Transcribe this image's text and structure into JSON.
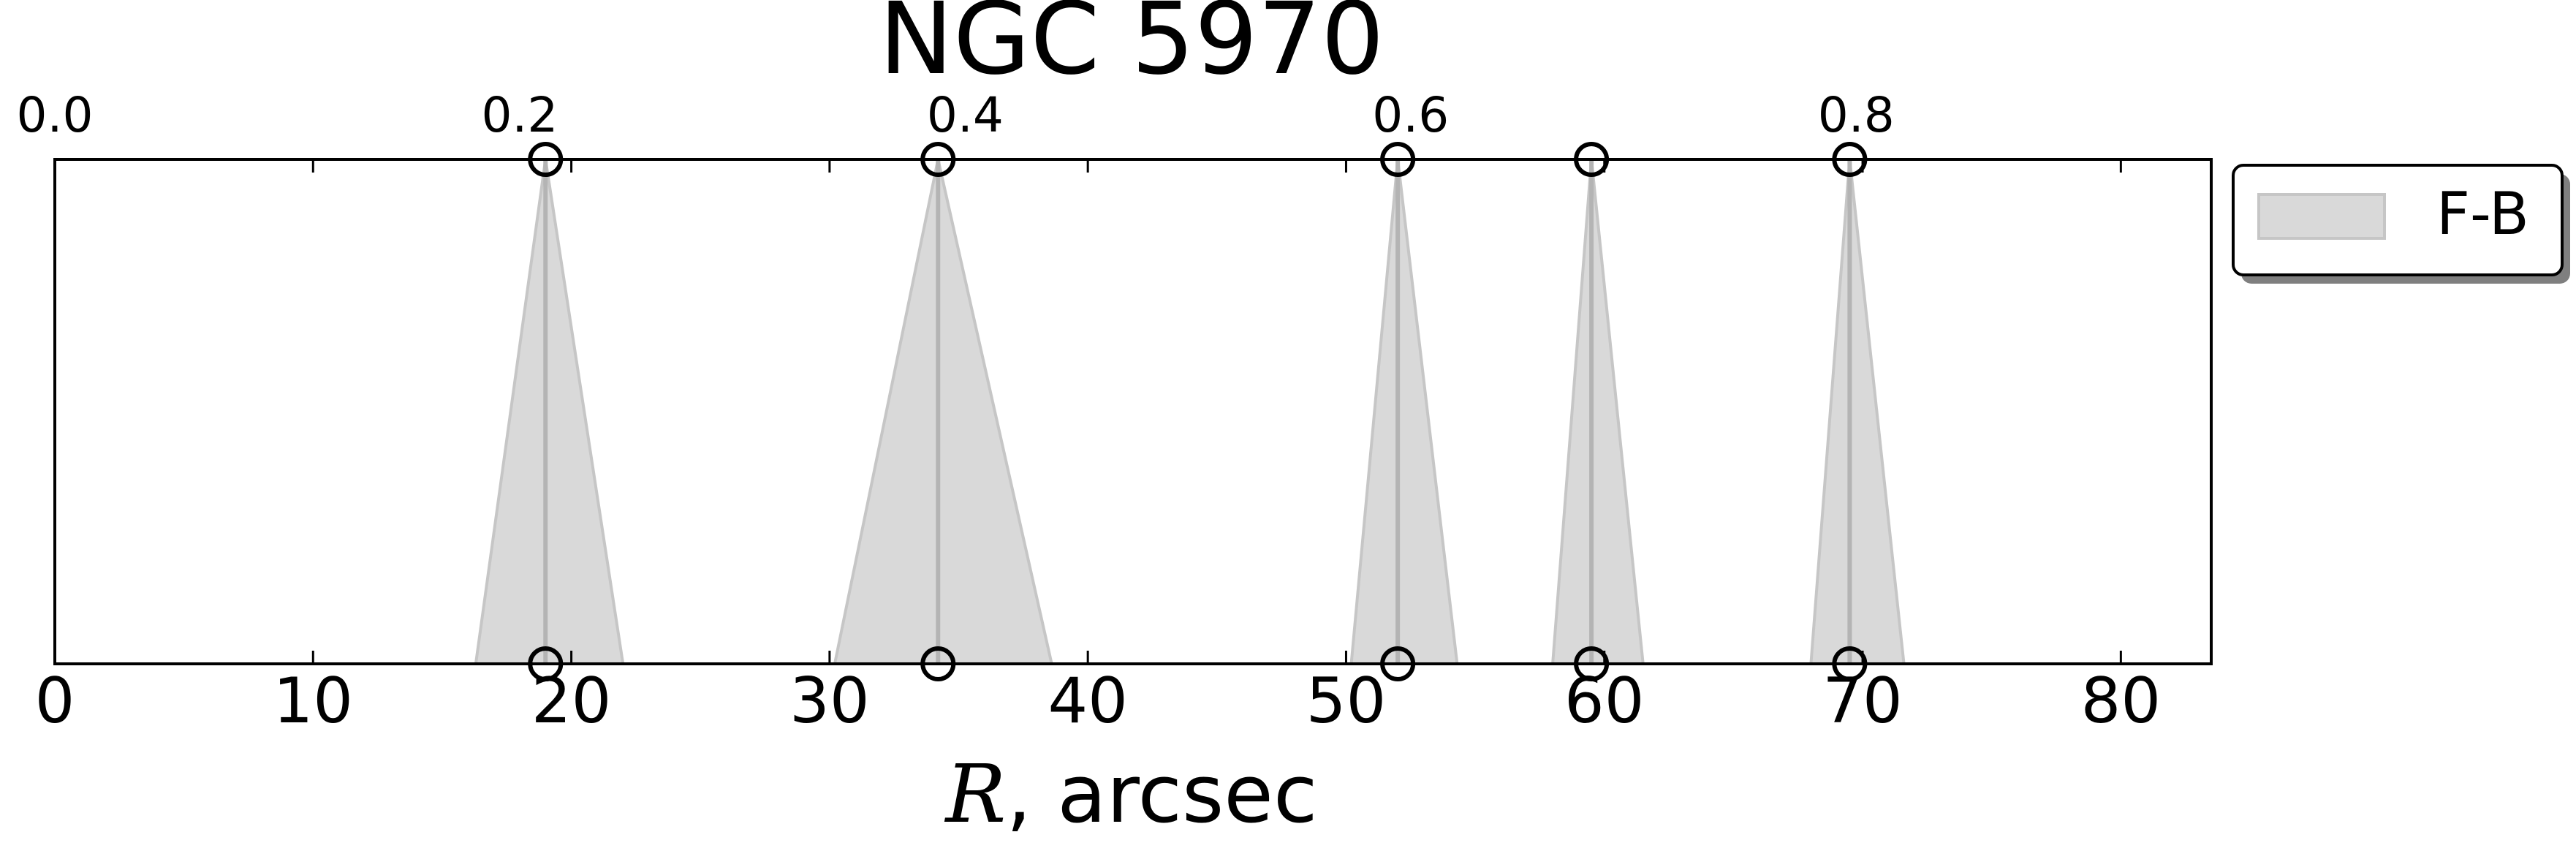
{
  "chart_data": {
    "type": "area",
    "title": "NGC 5970",
    "xlabel_var": "R",
    "xlabel_rest": ", arcsec",
    "xlim": [
      0,
      83.5
    ],
    "xticks": [
      0,
      10,
      20,
      30,
      40,
      50,
      60,
      70,
      80
    ],
    "top_axis_ticks": [
      {
        "label": "0.0",
        "x": 0
      },
      {
        "label": "0.2",
        "x": 18
      },
      {
        "label": "0.4",
        "x": 35.25
      },
      {
        "label": "0.6",
        "x": 52.5
      },
      {
        "label": "0.8",
        "x": 69.75
      }
    ],
    "legend": {
      "label": "F-B",
      "location": "upper-right outside"
    },
    "colors": {
      "fill": "#d9d9d9",
      "line": "#b4b4b4",
      "edge": "#c6c6c6",
      "marker": "#000000"
    },
    "features": [
      {
        "center": 19,
        "bottom_range": [
          16.3,
          22.0
        ]
      },
      {
        "center": 34.2,
        "bottom_range": [
          30.2,
          38.6
        ]
      },
      {
        "center": 52,
        "bottom_range": [
          50.2,
          54.3
        ]
      },
      {
        "center": 59.5,
        "bottom_range": [
          58.0,
          61.5
        ]
      },
      {
        "center": 69.5,
        "bottom_range": [
          68.0,
          71.6
        ]
      }
    ]
  }
}
